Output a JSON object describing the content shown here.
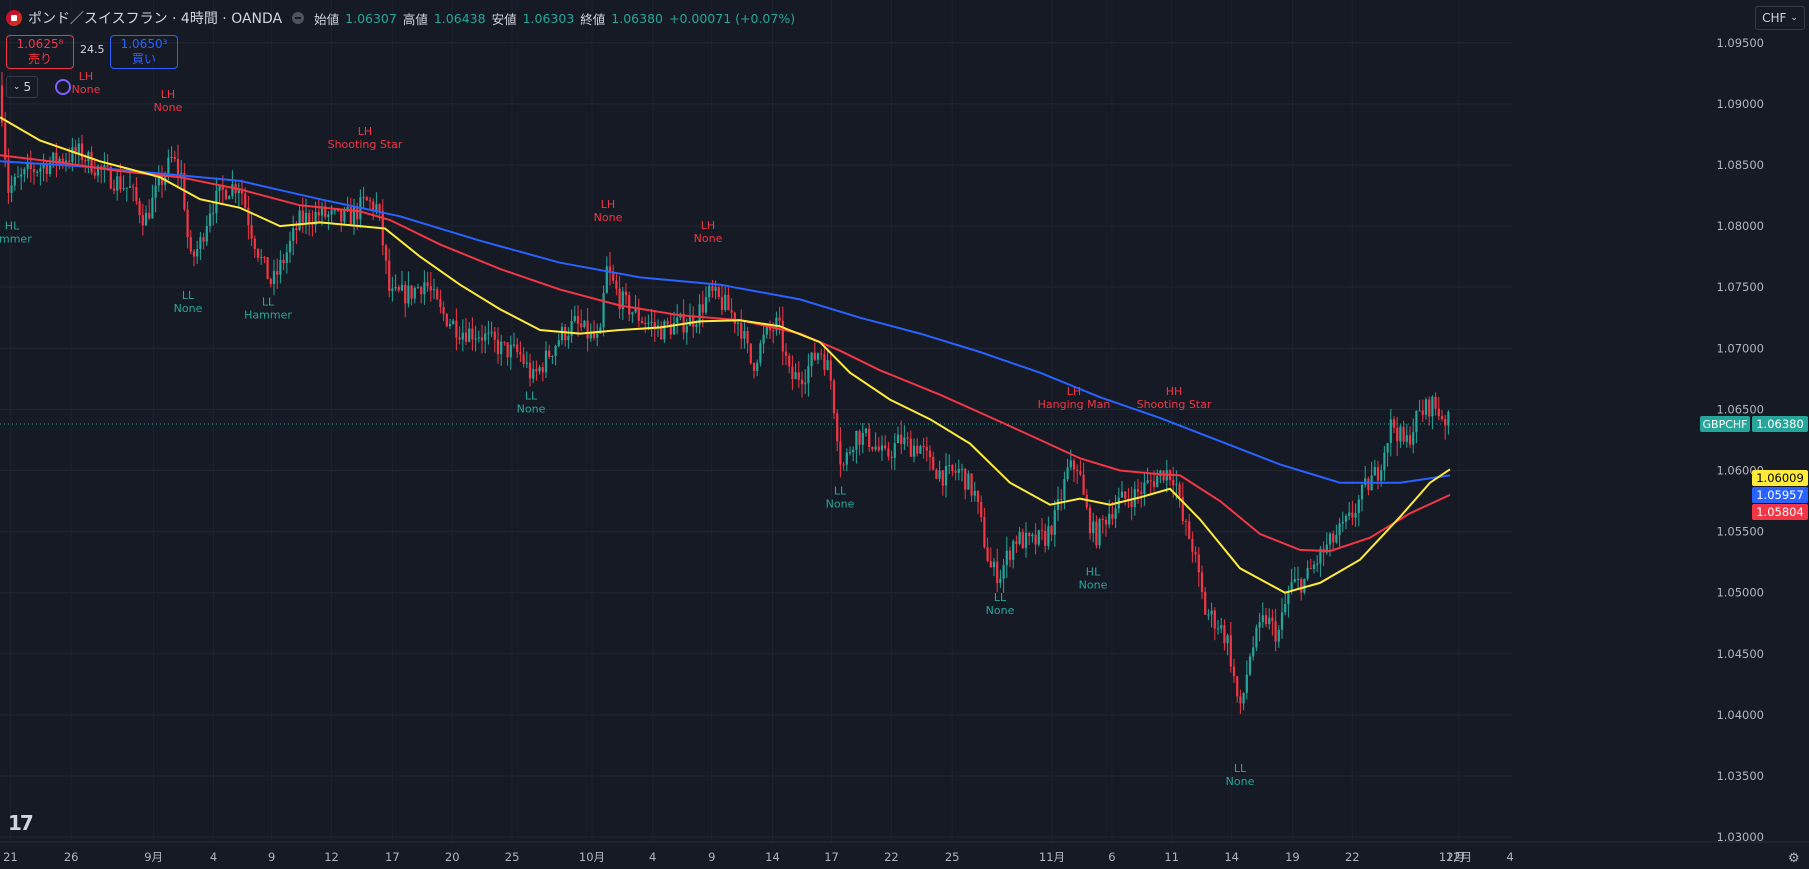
{
  "header": {
    "title": "ポンド／スイスフラン · 4時間 · OANDA",
    "open_label": "始値",
    "open": "1.06307",
    "high_label": "高値",
    "high": "1.06438",
    "low_label": "安値",
    "low": "1.06303",
    "close_label": "終値",
    "close": "1.06380",
    "change": "+0.00071 (+0.07%)"
  },
  "trade": {
    "sell_price": "1.0625⁸",
    "sell_label": "売り",
    "spread": "24.5",
    "buy_price": "1.0650³",
    "buy_label": "買い"
  },
  "indicator_toggle": {
    "count": "5"
  },
  "currency_button": "CHF",
  "logo_text": "17",
  "colors": {
    "up": "#26a69a",
    "down": "#f23645",
    "ma_yellow": "#ffeb3b",
    "ma_red": "#f23645",
    "ma_blue": "#2962ff",
    "bg": "#161a25"
  },
  "chart_data": {
    "type": "candlestick",
    "symbol": "GBPCHF",
    "y_ticks": [
      "1.09500",
      "1.09000",
      "1.08500",
      "1.08000",
      "1.07500",
      "1.07000",
      "1.06500",
      "1.06000",
      "1.05500",
      "1.05000",
      "1.04500",
      "1.04000",
      "1.03500",
      "1.03000"
    ],
    "x_ticks": [
      "21",
      "26",
      "9月",
      "4",
      "9",
      "12",
      "17",
      "20",
      "25",
      "10月",
      "4",
      "9",
      "14",
      "17",
      "22",
      "25",
      "11月",
      "6",
      "11",
      "14",
      "19",
      "22",
      "12月",
      "4"
    ],
    "last_price": "1.06380",
    "price_labels": [
      {
        "name": "GBPCHF",
        "value": "1.06380",
        "color": "#26a69a"
      },
      {
        "value": "1.06009",
        "color": "#ffeb3b"
      },
      {
        "value": "1.05957",
        "color": "#2962ff"
      },
      {
        "value": "1.05804",
        "color": "#f23645"
      }
    ],
    "ylim": [
      1.0296,
      1.0985
    ],
    "candle_path": [
      [
        0,
        1.0915
      ],
      [
        8,
        1.083
      ],
      [
        30,
        1.0845
      ],
      [
        60,
        1.0855
      ],
      [
        80,
        1.086
      ],
      [
        100,
        1.0845
      ],
      [
        130,
        1.083
      ],
      [
        145,
        1.0805
      ],
      [
        160,
        1.0835
      ],
      [
        172,
        1.0855
      ],
      [
        182,
        1.084
      ],
      [
        190,
        1.077
      ],
      [
        200,
        1.0785
      ],
      [
        210,
        1.0815
      ],
      [
        225,
        1.083
      ],
      [
        240,
        1.0835
      ],
      [
        250,
        1.08
      ],
      [
        262,
        1.077
      ],
      [
        272,
        1.0752
      ],
      [
        285,
        1.0775
      ],
      [
        300,
        1.0805
      ],
      [
        320,
        1.081
      ],
      [
        340,
        1.0805
      ],
      [
        355,
        1.081
      ],
      [
        365,
        1.082
      ],
      [
        378,
        1.0815
      ],
      [
        390,
        1.0742
      ],
      [
        410,
        1.0745
      ],
      [
        425,
        1.0755
      ],
      [
        440,
        1.073
      ],
      [
        460,
        1.0715
      ],
      [
        480,
        1.0712
      ],
      [
        500,
        1.07
      ],
      [
        520,
        1.0695
      ],
      [
        533,
        1.0675
      ],
      [
        545,
        1.069
      ],
      [
        560,
        1.071
      ],
      [
        575,
        1.072
      ],
      [
        590,
        1.071
      ],
      [
        600,
        1.0705
      ],
      [
        606,
        1.0765
      ],
      [
        620,
        1.074
      ],
      [
        640,
        1.0725
      ],
      [
        660,
        1.0715
      ],
      [
        680,
        1.072
      ],
      [
        695,
        1.0725
      ],
      [
        710,
        1.0745
      ],
      [
        725,
        1.0735
      ],
      [
        740,
        1.072
      ],
      [
        752,
        1.0685
      ],
      [
        765,
        1.071
      ],
      [
        778,
        1.072
      ],
      [
        790,
        1.0675
      ],
      [
        805,
        1.068
      ],
      [
        820,
        1.07
      ],
      [
        830,
        1.068
      ],
      [
        842,
        1.06
      ],
      [
        855,
        1.063
      ],
      [
        870,
        1.0625
      ],
      [
        885,
        1.061
      ],
      [
        900,
        1.0625
      ],
      [
        910,
        1.062
      ],
      [
        920,
        1.062
      ],
      [
        930,
        1.0605
      ],
      [
        945,
        1.0595
      ],
      [
        960,
        1.06
      ],
      [
        975,
        1.058
      ],
      [
        990,
        1.052
      ],
      [
        1000,
        1.0515
      ],
      [
        1015,
        1.0545
      ],
      [
        1030,
        1.054
      ],
      [
        1045,
        1.0545
      ],
      [
        1055,
        1.056
      ],
      [
        1068,
        1.06
      ],
      [
        1078,
        1.0605
      ],
      [
        1085,
        1.057
      ],
      [
        1095,
        1.0545
      ],
      [
        1108,
        1.0565
      ],
      [
        1120,
        1.0575
      ],
      [
        1135,
        1.058
      ],
      [
        1150,
        1.059
      ],
      [
        1165,
        1.06
      ],
      [
        1175,
        1.0595
      ],
      [
        1182,
        1.056
      ],
      [
        1192,
        1.054
      ],
      [
        1205,
        1.0485
      ],
      [
        1218,
        1.0475
      ],
      [
        1228,
        1.046
      ],
      [
        1240,
        1.04
      ],
      [
        1250,
        1.045
      ],
      [
        1265,
        1.048
      ],
      [
        1278,
        1.0465
      ],
      [
        1290,
        1.0505
      ],
      [
        1305,
        1.051
      ],
      [
        1320,
        1.053
      ],
      [
        1335,
        1.0545
      ],
      [
        1350,
        1.056
      ],
      [
        1365,
        1.0585
      ],
      [
        1378,
        1.06
      ],
      [
        1392,
        1.064
      ],
      [
        1405,
        1.062
      ],
      [
        1418,
        1.0645
      ],
      [
        1432,
        1.0655
      ],
      [
        1442,
        1.0645
      ],
      [
        1450,
        1.0638
      ]
    ],
    "ma_yellow_path": [
      [
        0,
        1.0889
      ],
      [
        40,
        1.087
      ],
      [
        100,
        1.0853
      ],
      [
        160,
        1.084
      ],
      [
        200,
        1.0822
      ],
      [
        240,
        1.0815
      ],
      [
        280,
        1.08
      ],
      [
        320,
        1.0803
      ],
      [
        360,
        1.08
      ],
      [
        385,
        1.0798
      ],
      [
        420,
        1.0775
      ],
      [
        460,
        1.0752
      ],
      [
        500,
        1.0732
      ],
      [
        540,
        1.0715
      ],
      [
        580,
        1.0712
      ],
      [
        620,
        1.0715
      ],
      [
        660,
        1.0717
      ],
      [
        700,
        1.0722
      ],
      [
        740,
        1.0723
      ],
      [
        780,
        1.0718
      ],
      [
        820,
        1.0705
      ],
      [
        850,
        1.068
      ],
      [
        890,
        1.0658
      ],
      [
        930,
        1.0642
      ],
      [
        970,
        1.0622
      ],
      [
        1010,
        1.059
      ],
      [
        1050,
        1.0572
      ],
      [
        1080,
        1.0577
      ],
      [
        1110,
        1.0572
      ],
      [
        1140,
        1.0578
      ],
      [
        1170,
        1.0585
      ],
      [
        1200,
        1.056
      ],
      [
        1240,
        1.052
      ],
      [
        1285,
        1.05
      ],
      [
        1320,
        1.0508
      ],
      [
        1360,
        1.0527
      ],
      [
        1400,
        1.0562
      ],
      [
        1430,
        1.059
      ],
      [
        1450,
        1.0601
      ]
    ],
    "ma_red_path": [
      [
        0,
        1.0858
      ],
      [
        60,
        1.0852
      ],
      [
        120,
        1.0845
      ],
      [
        180,
        1.084
      ],
      [
        240,
        1.083
      ],
      [
        300,
        1.0817
      ],
      [
        360,
        1.0812
      ],
      [
        390,
        1.0805
      ],
      [
        440,
        1.0785
      ],
      [
        500,
        1.0765
      ],
      [
        560,
        1.0748
      ],
      [
        620,
        1.0735
      ],
      [
        680,
        1.0727
      ],
      [
        740,
        1.0723
      ],
      [
        800,
        1.0712
      ],
      [
        840,
        1.0698
      ],
      [
        880,
        1.0682
      ],
      [
        940,
        1.0662
      ],
      [
        1000,
        1.064
      ],
      [
        1040,
        1.0625
      ],
      [
        1080,
        1.061
      ],
      [
        1120,
        1.06
      ],
      [
        1160,
        1.0597
      ],
      [
        1180,
        1.0596
      ],
      [
        1220,
        1.0575
      ],
      [
        1260,
        1.0548
      ],
      [
        1300,
        1.0535
      ],
      [
        1330,
        1.0534
      ],
      [
        1370,
        1.0545
      ],
      [
        1410,
        1.0565
      ],
      [
        1450,
        1.058
      ]
    ],
    "ma_blue_path": [
      [
        0,
        1.0853
      ],
      [
        80,
        1.0849
      ],
      [
        160,
        1.0843
      ],
      [
        240,
        1.0837
      ],
      [
        320,
        1.0822
      ],
      [
        400,
        1.0808
      ],
      [
        480,
        1.0788
      ],
      [
        560,
        1.077
      ],
      [
        640,
        1.0758
      ],
      [
        720,
        1.0752
      ],
      [
        800,
        1.074
      ],
      [
        860,
        1.0725
      ],
      [
        920,
        1.0712
      ],
      [
        980,
        1.0697
      ],
      [
        1040,
        1.068
      ],
      [
        1100,
        1.066
      ],
      [
        1160,
        1.0643
      ],
      [
        1220,
        1.0624
      ],
      [
        1280,
        1.0605
      ],
      [
        1340,
        1.059
      ],
      [
        1400,
        1.059
      ],
      [
        1450,
        1.0596
      ]
    ],
    "annotations": [
      {
        "a": "HL",
        "b": "ammer",
        "color": "#26a69a",
        "x": 12,
        "price": 1.0807,
        "pos": "below"
      },
      {
        "a": "LH",
        "b": "None",
        "color": "#f23645",
        "x": 86,
        "price": 1.09,
        "pos": "above"
      },
      {
        "a": "LH",
        "b": "None",
        "color": "#f23645",
        "x": 168,
        "price": 1.0885,
        "pos": "above"
      },
      {
        "a": "LL",
        "b": "None",
        "color": "#26a69a",
        "x": 188,
        "price": 1.075,
        "pos": "below"
      },
      {
        "a": "LL",
        "b": "Hammer",
        "color": "#26a69a",
        "x": 268,
        "price": 1.0745,
        "pos": "below"
      },
      {
        "a": "LH",
        "b": "Shooting Star",
        "color": "#f23645",
        "x": 365,
        "price": 1.0855,
        "pos": "above"
      },
      {
        "a": "LL",
        "b": "None",
        "color": "#26a69a",
        "x": 531,
        "price": 1.0668,
        "pos": "below"
      },
      {
        "a": "LH",
        "b": "None",
        "color": "#f23645",
        "x": 608,
        "price": 1.0795,
        "pos": "above"
      },
      {
        "a": "LH",
        "b": "None",
        "color": "#f23645",
        "x": 708,
        "price": 1.0778,
        "pos": "above"
      },
      {
        "a": "LL",
        "b": "None",
        "color": "#26a69a",
        "x": 840,
        "price": 1.059,
        "pos": "below"
      },
      {
        "a": "LL",
        "b": "None",
        "color": "#26a69a",
        "x": 1000,
        "price": 1.0503,
        "pos": "below"
      },
      {
        "a": "LH",
        "b": "Hanging Man",
        "color": "#f23645",
        "x": 1074,
        "price": 1.0642,
        "pos": "above"
      },
      {
        "a": "HL",
        "b": "None",
        "color": "#26a69a",
        "x": 1093,
        "price": 1.0524,
        "pos": "below"
      },
      {
        "a": "HH",
        "b": "Shooting Star",
        "color": "#f23645",
        "x": 1174,
        "price": 1.0642,
        "pos": "above"
      },
      {
        "a": "LL",
        "b": "None",
        "color": "#26a69a",
        "x": 1240,
        "price": 1.0363,
        "pos": "below"
      }
    ]
  }
}
